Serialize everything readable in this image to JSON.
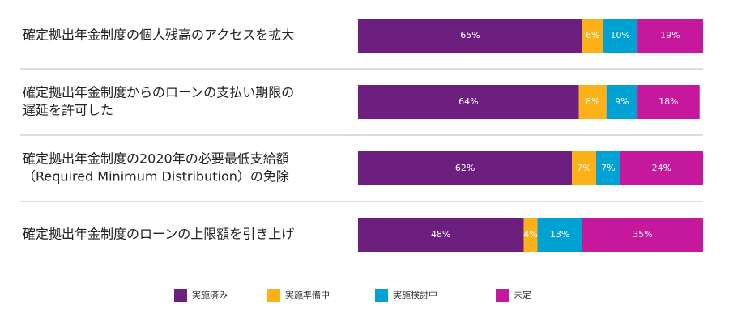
{
  "chart_data": {
    "type": "stacked-bar-horizontal",
    "categories": [
      [
        "確定拠出年金制度の個人残高のアクセスを拡大"
      ],
      [
        "確定拠出年金制度からのローンの支払い期限の",
        "遅延を許可した"
      ],
      [
        "確定拠出年金制度の2020年の必要最低支給額",
        "（Required Minimum Distribution）の免除"
      ],
      [
        "確定拠出年金制度のローンの上限額を引き上げ"
      ]
    ],
    "xlim": [
      0,
      100
    ],
    "series": [
      {
        "name": "実施済み",
        "color": "#6c1f7e",
        "values": [
          65,
          64,
          62,
          48
        ],
        "value_labels": [
          "65%",
          "64%",
          "62%",
          "48%"
        ]
      },
      {
        "name": "実施準備中",
        "color": "#fbb117",
        "values": [
          6,
          8,
          7,
          4
        ],
        "value_labels": [
          "6%",
          "8%",
          "7%",
          "4%"
        ]
      },
      {
        "name": "実施検討中",
        "color": "#00a1d3",
        "values": [
          10,
          9,
          7,
          13
        ],
        "value_labels": [
          "10%",
          "9%",
          "7%",
          "13%"
        ]
      },
      {
        "name": "未定",
        "color": "#c5189c",
        "values": [
          19,
          18,
          24,
          35
        ],
        "value_labels": [
          "19%",
          "18%",
          "24%",
          "35%"
        ]
      }
    ],
    "legend": "bottom"
  }
}
